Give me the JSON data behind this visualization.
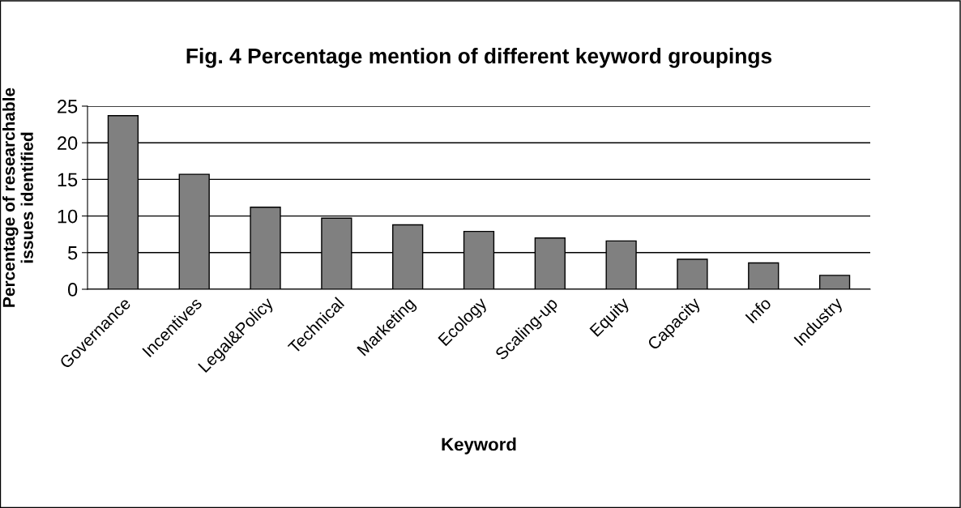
{
  "chart_data": {
    "type": "bar",
    "title": "Fig. 4 Percentage mention of different keyword groupings",
    "xlabel": "Keyword",
    "ylabel": "Percentage of researchable\nissues identified",
    "categories": [
      "Governance",
      "Incentives",
      "Legal&Policy",
      "Technical",
      "Marketing",
      "Ecology",
      "Scaling-up",
      "Equity",
      "Capacity",
      "Info",
      "Industry"
    ],
    "values": [
      23.7,
      15.7,
      11.2,
      9.7,
      8.8,
      7.9,
      7.0,
      6.6,
      4.1,
      3.6,
      1.9
    ],
    "color": "#808080",
    "ylim": [
      0,
      25
    ],
    "yticks": [
      0,
      5,
      10,
      15,
      20,
      25
    ],
    "grid": "y",
    "legend": false
  }
}
